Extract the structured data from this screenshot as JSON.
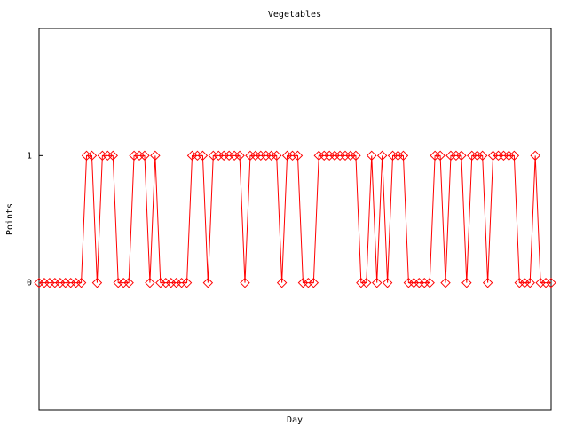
{
  "chart_data": {
    "type": "line",
    "title": "Vegetables",
    "xlabel": "Day",
    "ylabel": "Points",
    "color": "#ff0000",
    "values": [
      0,
      0,
      0,
      0,
      0,
      0,
      0,
      0,
      0,
      1,
      1,
      0,
      1,
      1,
      1,
      0,
      0,
      0,
      1,
      1,
      1,
      0,
      1,
      0,
      0,
      0,
      0,
      0,
      0,
      1,
      1,
      1,
      0,
      1,
      1,
      1,
      1,
      1,
      1,
      0,
      1,
      1,
      1,
      1,
      1,
      1,
      0,
      1,
      1,
      1,
      0,
      0,
      0,
      1,
      1,
      1,
      1,
      1,
      1,
      1,
      1,
      0,
      0,
      1,
      0,
      1,
      0,
      1,
      1,
      1,
      0,
      0,
      0,
      0,
      0,
      1,
      1,
      0,
      1,
      1,
      1,
      0,
      1,
      1,
      1,
      0,
      1,
      1,
      1,
      1,
      1,
      0,
      0,
      0,
      1,
      0,
      0,
      0
    ],
    "ylim": [
      -1,
      2
    ],
    "yticks": [
      0,
      1
    ]
  }
}
